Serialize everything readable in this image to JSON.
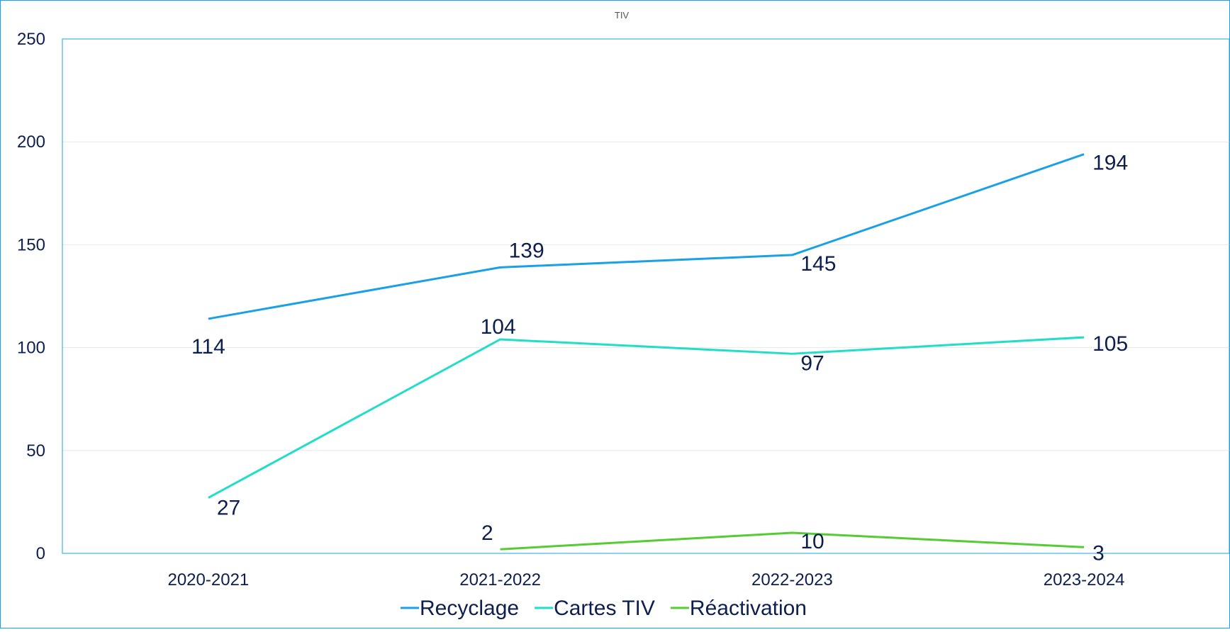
{
  "chart_data": {
    "type": "line",
    "title": "TIV",
    "xlabel": "",
    "ylabel": "",
    "categories": [
      "2020-2021",
      "2021-2022",
      "2022-2023",
      "2023-2024"
    ],
    "ylim": [
      0,
      250
    ],
    "yticks": [
      0,
      50,
      100,
      150,
      200,
      250
    ],
    "grid": true,
    "legend": "bottom",
    "series": [
      {
        "name": "Recyclage",
        "color": "#1aa0e6",
        "values": [
          114,
          139,
          145,
          194
        ],
        "labels": [
          "114",
          "139",
          "145",
          "194"
        ]
      },
      {
        "name": "Cartes TIV",
        "color": "#22ddc8",
        "values": [
          27,
          104,
          97,
          105
        ],
        "labels": [
          "27",
          "104",
          "97",
          "105"
        ]
      },
      {
        "name": "Réactivation",
        "color": "#55cc33",
        "values": [
          null,
          2,
          10,
          3
        ],
        "labels": [
          "",
          "2",
          "10",
          "3"
        ]
      }
    ],
    "axis_color": "#1aa0e6",
    "grid_color": "#e8e8e8",
    "label_color": "#0c1f4f"
  }
}
